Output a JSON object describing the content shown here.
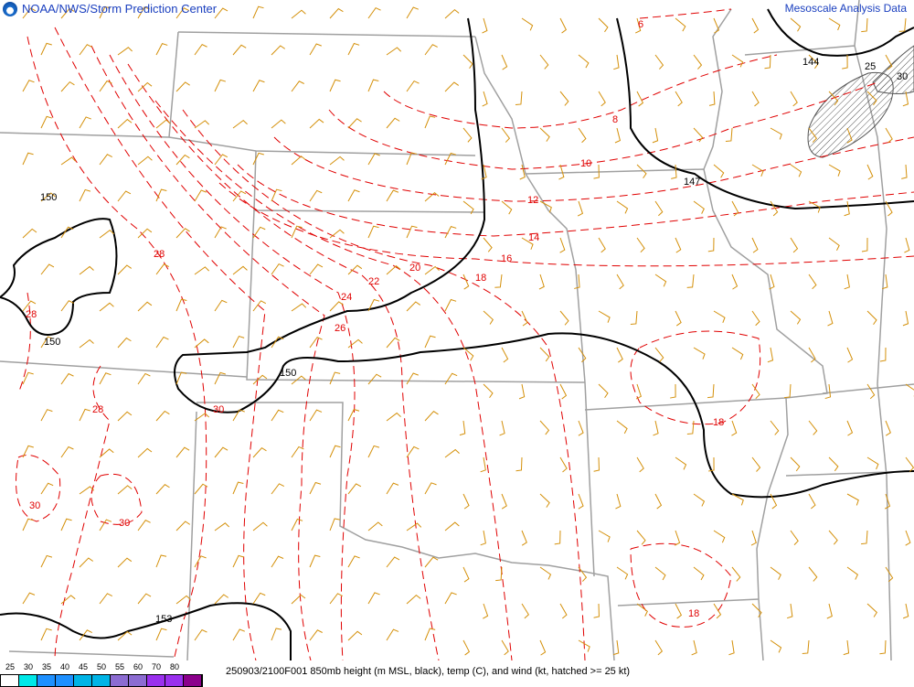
{
  "header": {
    "title": "NOAA/NWS/Storm Prediction Center",
    "right_title": "Mesoscale Analysis Data",
    "logo": "noaa-logo"
  },
  "footer": {
    "caption": "250903/2100F001 850mb height (m MSL, black), temp (C), and wind (kt, hatched >= 25 kt)",
    "colorbar_labels": [
      "25",
      "30",
      "35",
      "40",
      "45",
      "50",
      "55",
      "60",
      "70",
      "80"
    ],
    "colorbar_colors": [
      "#ffffff",
      "#00e8e8",
      "#1e90ff",
      "#1e90ff",
      "#00b4e6",
      "#00b4e6",
      "#8c6cd2",
      "#8c6cd2",
      "#9a30ee",
      "#9a30ee",
      "#8b008b"
    ]
  },
  "colors": {
    "height": "#000000",
    "temp": "#e00000",
    "wind": "#d4900a",
    "borders": "#a0a0a0",
    "hatch": "#555555"
  },
  "height_labels": [
    "150",
    "150",
    "150",
    "153",
    "147",
    "144",
    "25",
    "30"
  ],
  "temp_labels": [
    "6",
    "8",
    "10",
    "12",
    "14",
    "16",
    "18",
    "20",
    "22",
    "24",
    "26",
    "28",
    "28",
    "28",
    "30",
    "30",
    "30",
    "18",
    "18"
  ]
}
